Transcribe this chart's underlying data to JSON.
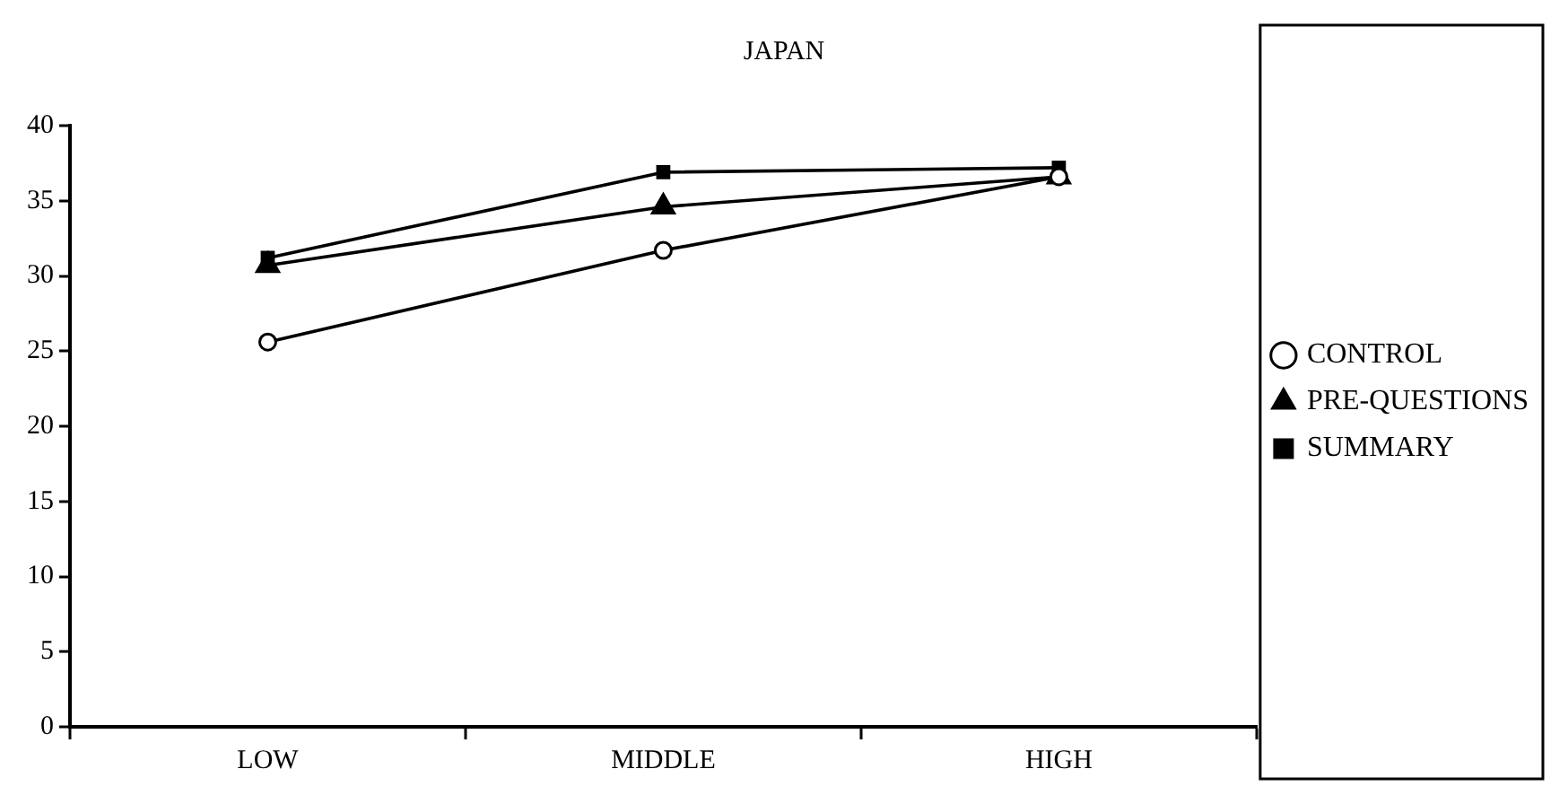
{
  "chart_data": {
    "type": "line",
    "title": "JAPAN",
    "categories": [
      "LOW",
      "MIDDLE",
      "HIGH"
    ],
    "series": [
      {
        "name": "CONTROL",
        "color": "#000000",
        "marker": "circle",
        "values": [
          25.6,
          31.7,
          36.6
        ]
      },
      {
        "name": "PRE-QUESTIONS",
        "color": "#000000",
        "marker": "triangle",
        "values": [
          30.7,
          34.6,
          36.6
        ]
      },
      {
        "name": "SUMMARY",
        "color": "#000000",
        "marker": "square",
        "values": [
          31.2,
          36.9,
          37.2
        ]
      }
    ],
    "ylim": [
      0,
      40
    ],
    "yticks": [
      0,
      5,
      10,
      15,
      20,
      25,
      30,
      35,
      40
    ],
    "grid": false,
    "legend": "right",
    "line_style": "solid"
  }
}
